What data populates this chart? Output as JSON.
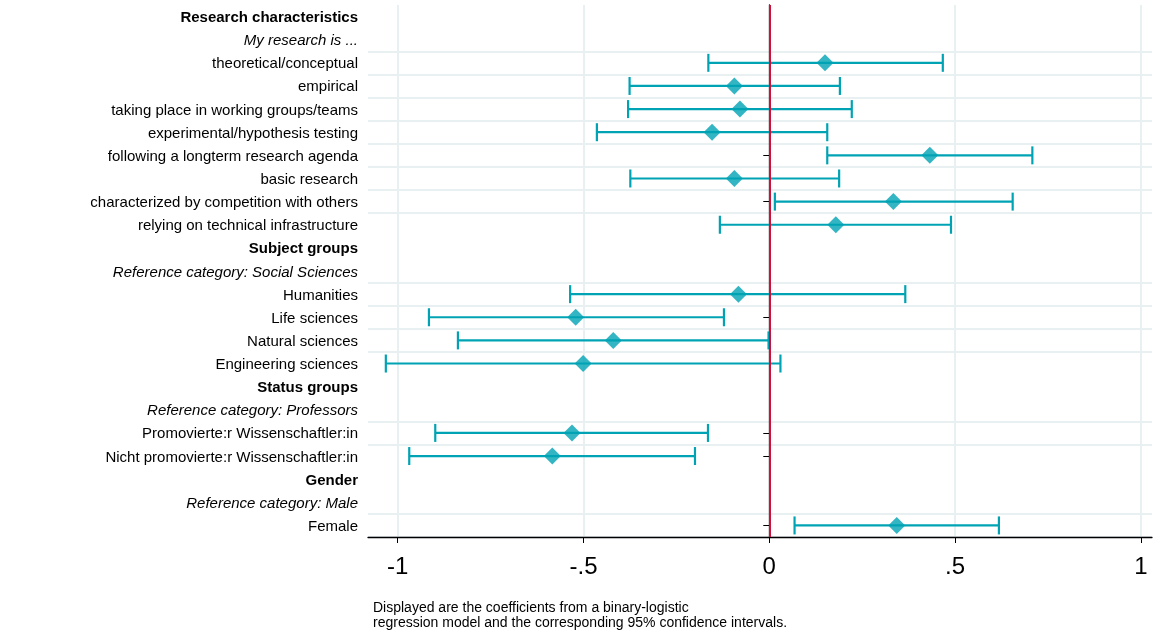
{
  "chart_data": {
    "type": "scatter",
    "orientation": "horizontal",
    "categories": [
      "Research characteristics",
      "My research is ...",
      "theoretical/conceptual",
      "empirical",
      "taking place in working groups/teams",
      "experimental/hypothesis testing",
      "following a longterm research agenda",
      "basic research",
      "characterized by competition with others",
      "relying on technical infrastructure",
      "Subject groups",
      "Reference category: Social Sciences",
      "Humanities",
      "Life sciences",
      "Natural sciences",
      "Engineering sciences",
      "Status groups",
      "Reference category: Professors",
      "Promovierte:r Wissenschaftler:in",
      "Nicht promovierte:r Wissenschaftler:in",
      "Gender",
      "Reference category: Male",
      "Female"
    ],
    "series": [
      {
        "color": "#00a3b4",
        "values": [
          null,
          null,
          0.15,
          -0.094,
          -0.079,
          -0.154,
          0.432,
          -0.094,
          0.334,
          0.179,
          null,
          null,
          -0.083,
          -0.521,
          -0.42,
          -0.501,
          null,
          null,
          -0.531,
          -0.584,
          null,
          null,
          0.343
        ],
        "errors": [
          null,
          null,
          [
            -0.164,
            0.467
          ],
          [
            -0.376,
            0.19
          ],
          [
            -0.38,
            0.222
          ],
          [
            -0.464,
            0.156
          ],
          [
            0.156,
            0.708
          ],
          [
            -0.374,
            0.188
          ],
          [
            0.015,
            0.655
          ],
          [
            -0.133,
            0.489
          ],
          null,
          null,
          [
            -0.536,
            0.366
          ],
          [
            -0.916,
            -0.122
          ],
          [
            -0.838,
            -0.002
          ],
          [
            -1.032,
            0.03
          ],
          null,
          null,
          [
            -0.899,
            -0.165
          ],
          [
            -0.969,
            -0.2
          ],
          null,
          null,
          [
            0.068,
            0.618
          ]
        ]
      }
    ],
    "marker": "diamond",
    "xlim": [
      -1.08,
      1.03
    ],
    "xticks": [
      -1,
      {
        "value": -0.5,
        "label": "-.5"
      },
      0,
      {
        "value": 0.5,
        "label": ".5"
      },
      1
    ],
    "ref_lines": [
      {
        "axis": "x",
        "value": 0,
        "color": "#d0103a"
      }
    ],
    "grid": true,
    "annotations": [
      "Displayed are the coefficients from a binary-logistic\nregression model and the corresponding 95% confidence intervals."
    ]
  }
}
